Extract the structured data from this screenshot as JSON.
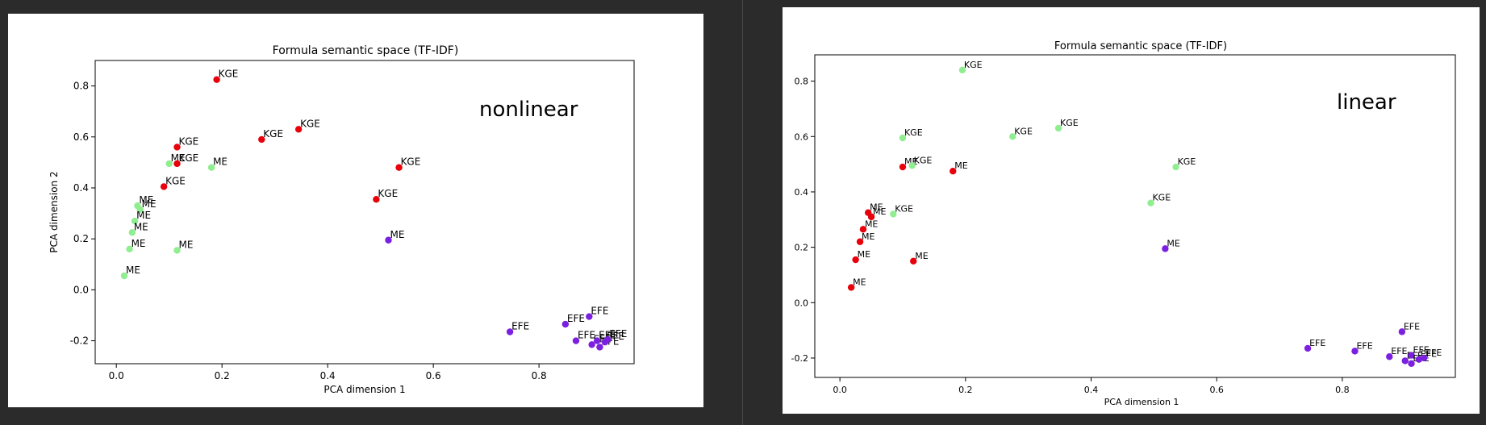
{
  "chart_data": [
    {
      "type": "scatter",
      "title": "Formula semantic space (TF-IDF)",
      "xlabel": "PCA dimension 1",
      "ylabel": "PCA dimension 2",
      "annotation": "nonlinear",
      "xlim": [
        -0.04,
        0.98
      ],
      "ylim": [
        -0.29,
        0.9
      ],
      "xticks": [
        0.0,
        0.2,
        0.4,
        0.6,
        0.8
      ],
      "yticks": [
        -0.2,
        0.0,
        0.2,
        0.4,
        0.6,
        0.8
      ],
      "grid": false,
      "colors": {
        "red": "#e8000b",
        "green": "#90ee90",
        "purple": "#7b1fe0"
      },
      "points": [
        {
          "x": 0.19,
          "y": 0.825,
          "label": "KGE",
          "color": "red"
        },
        {
          "x": 0.115,
          "y": 0.56,
          "label": "KGE",
          "color": "red"
        },
        {
          "x": 0.275,
          "y": 0.59,
          "label": "KGE",
          "color": "red"
        },
        {
          "x": 0.345,
          "y": 0.63,
          "label": "KGE",
          "color": "red"
        },
        {
          "x": 0.1,
          "y": 0.495,
          "label": "ME",
          "color": "green"
        },
        {
          "x": 0.115,
          "y": 0.495,
          "label": "KGE",
          "color": "red"
        },
        {
          "x": 0.18,
          "y": 0.48,
          "label": "ME",
          "color": "green"
        },
        {
          "x": 0.535,
          "y": 0.48,
          "label": "KGE",
          "color": "red"
        },
        {
          "x": 0.09,
          "y": 0.405,
          "label": "KGE",
          "color": "red"
        },
        {
          "x": 0.492,
          "y": 0.355,
          "label": "KGE",
          "color": "red"
        },
        {
          "x": 0.04,
          "y": 0.33,
          "label": "ME",
          "color": "green"
        },
        {
          "x": 0.045,
          "y": 0.315,
          "label": "ME",
          "color": "green"
        },
        {
          "x": 0.035,
          "y": 0.27,
          "label": "ME",
          "color": "green"
        },
        {
          "x": 0.03,
          "y": 0.225,
          "label": "ME",
          "color": "green"
        },
        {
          "x": 0.025,
          "y": 0.16,
          "label": "ME",
          "color": "green"
        },
        {
          "x": 0.115,
          "y": 0.155,
          "label": "ME",
          "color": "green"
        },
        {
          "x": 0.015,
          "y": 0.055,
          "label": "ME",
          "color": "green"
        },
        {
          "x": 0.515,
          "y": 0.195,
          "label": "ME",
          "color": "purple"
        },
        {
          "x": 0.745,
          "y": -0.165,
          "label": "EFE",
          "color": "purple"
        },
        {
          "x": 0.85,
          "y": -0.135,
          "label": "EFE",
          "color": "purple"
        },
        {
          "x": 0.895,
          "y": -0.105,
          "label": "EFE",
          "color": "purple"
        },
        {
          "x": 0.87,
          "y": -0.2,
          "label": "EFE",
          "color": "purple"
        },
        {
          "x": 0.9,
          "y": -0.215,
          "label": "EFE",
          "color": "purple"
        },
        {
          "x": 0.91,
          "y": -0.2,
          "label": "EFE",
          "color": "purple"
        },
        {
          "x": 0.915,
          "y": -0.225,
          "label": "EFE",
          "color": "purple"
        },
        {
          "x": 0.925,
          "y": -0.205,
          "label": "EFE",
          "color": "purple"
        },
        {
          "x": 0.93,
          "y": -0.195,
          "label": "EFE",
          "color": "purple"
        }
      ]
    },
    {
      "type": "scatter",
      "title": "Formula semantic space (TF-IDF)",
      "xlabel": "PCA dimension 1",
      "ylabel": "",
      "annotation": "linear",
      "xlim": [
        -0.04,
        0.98
      ],
      "ylim": [
        -0.27,
        0.895
      ],
      "xticks": [
        0.0,
        0.2,
        0.4,
        0.6,
        0.8
      ],
      "yticks": [
        -0.2,
        0.0,
        0.2,
        0.4,
        0.6,
        0.8
      ],
      "grid": false,
      "colors": {
        "red": "#e8000b",
        "green": "#90ee90",
        "purple": "#7b1fe0"
      },
      "points": [
        {
          "x": 0.195,
          "y": 0.84,
          "label": "KGE",
          "color": "green"
        },
        {
          "x": 0.1,
          "y": 0.595,
          "label": "KGE",
          "color": "green"
        },
        {
          "x": 0.275,
          "y": 0.6,
          "label": "KGE",
          "color": "green"
        },
        {
          "x": 0.348,
          "y": 0.63,
          "label": "KGE",
          "color": "green"
        },
        {
          "x": 0.1,
          "y": 0.49,
          "label": "ME",
          "color": "red"
        },
        {
          "x": 0.115,
          "y": 0.495,
          "label": "KGE",
          "color": "green"
        },
        {
          "x": 0.18,
          "y": 0.475,
          "label": "ME",
          "color": "red"
        },
        {
          "x": 0.535,
          "y": 0.49,
          "label": "KGE",
          "color": "green"
        },
        {
          "x": 0.085,
          "y": 0.32,
          "label": "KGE",
          "color": "green"
        },
        {
          "x": 0.495,
          "y": 0.36,
          "label": "KGE",
          "color": "green"
        },
        {
          "x": 0.045,
          "y": 0.325,
          "label": "ME",
          "color": "red"
        },
        {
          "x": 0.05,
          "y": 0.31,
          "label": "ME",
          "color": "red"
        },
        {
          "x": 0.037,
          "y": 0.265,
          "label": "ME",
          "color": "red"
        },
        {
          "x": 0.032,
          "y": 0.22,
          "label": "ME",
          "color": "red"
        },
        {
          "x": 0.025,
          "y": 0.155,
          "label": "ME",
          "color": "red"
        },
        {
          "x": 0.117,
          "y": 0.15,
          "label": "ME",
          "color": "red"
        },
        {
          "x": 0.018,
          "y": 0.055,
          "label": "ME",
          "color": "red"
        },
        {
          "x": 0.518,
          "y": 0.195,
          "label": "ME",
          "color": "purple"
        },
        {
          "x": 0.745,
          "y": -0.165,
          "label": "EFE",
          "color": "purple"
        },
        {
          "x": 0.82,
          "y": -0.175,
          "label": "EFE",
          "color": "purple"
        },
        {
          "x": 0.895,
          "y": -0.105,
          "label": "EFE",
          "color": "purple"
        },
        {
          "x": 0.875,
          "y": -0.195,
          "label": "EFE",
          "color": "purple"
        },
        {
          "x": 0.9,
          "y": -0.21,
          "label": "EFE",
          "color": "purple"
        },
        {
          "x": 0.91,
          "y": -0.19,
          "label": "EFE",
          "color": "purple"
        },
        {
          "x": 0.91,
          "y": -0.22,
          "label": "EFE",
          "color": "purple"
        },
        {
          "x": 0.922,
          "y": -0.205,
          "label": "EFE",
          "color": "purple"
        },
        {
          "x": 0.93,
          "y": -0.2,
          "label": "EFE",
          "color": "purple"
        }
      ]
    }
  ]
}
